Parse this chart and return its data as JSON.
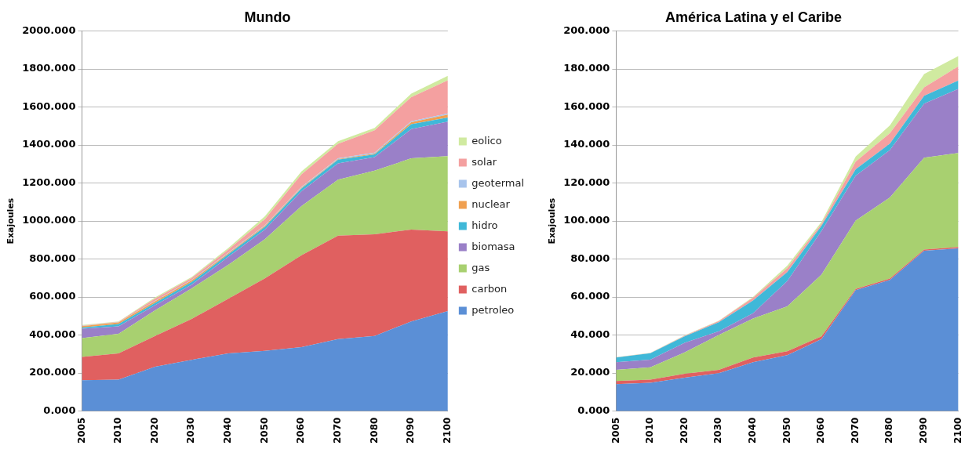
{
  "chart_data": [
    {
      "type": "area",
      "title": "Mundo",
      "ylabel": "Exajoules",
      "stacked": true,
      "grid": "y",
      "legend": "right",
      "categories": [
        "2005",
        "2010",
        "2020",
        "2030",
        "2040",
        "2050",
        "2060",
        "2070",
        "2080",
        "2090",
        "2100"
      ],
      "ylim": [
        0,
        2000
      ],
      "yticks": [
        {
          "value": 0,
          "label": "0.000"
        },
        {
          "value": 200,
          "label": "200.000"
        },
        {
          "value": 400,
          "label": "400.000"
        },
        {
          "value": 600,
          "label": "600.000"
        },
        {
          "value": 800,
          "label": "800.000"
        },
        {
          "value": 1000,
          "label": "1000.000"
        },
        {
          "value": 1200,
          "label": "1200.000"
        },
        {
          "value": 1400,
          "label": "1400.000"
        },
        {
          "value": 1600,
          "label": "1600.000"
        },
        {
          "value": 1800,
          "label": "1800.000"
        },
        {
          "value": 2000,
          "label": "2000.000"
        }
      ],
      "series": [
        {
          "name": "petroleo",
          "color": "#5b8fd6",
          "values": [
            162,
            165,
            233,
            270,
            304,
            317,
            336,
            379,
            395,
            472,
            526
          ]
        },
        {
          "name": "carbon",
          "color": "#e06060",
          "values": [
            123,
            139,
            162,
            215,
            287,
            381,
            484,
            544,
            535,
            483,
            420
          ]
        },
        {
          "name": "gas",
          "color": "#a8d070",
          "values": [
            99,
            103,
            135,
            161,
            179,
            207,
            259,
            295,
            335,
            375,
            396
          ]
        },
        {
          "name": "biomasa",
          "color": "#9a80c8",
          "values": [
            49,
            39,
            27,
            19,
            42,
            50,
            78,
            86,
            71,
            154,
            181
          ]
        },
        {
          "name": "hidro",
          "color": "#40b8d8",
          "values": [
            7,
            12,
            13,
            15,
            13,
            15,
            15,
            19,
            15,
            26,
            22
          ]
        },
        {
          "name": "nuclear",
          "color": "#f0a050",
          "values": [
            7,
            8,
            8,
            8,
            5,
            5,
            4,
            3,
            4,
            10,
            15
          ]
        },
        {
          "name": "geotermal",
          "color": "#a8c4ec",
          "values": [
            1,
            1,
            2,
            2,
            3,
            3,
            4,
            4,
            5,
            5,
            6
          ]
        },
        {
          "name": "solar",
          "color": "#f4a0a0",
          "values": [
            2,
            2,
            12,
            10,
            17,
            32,
            66,
            77,
            118,
            127,
            175
          ]
        },
        {
          "name": "eolico",
          "color": "#d0eaa0",
          "values": [
            3,
            3,
            6,
            6,
            8,
            15,
            15,
            13,
            12,
            19,
            23
          ]
        }
      ]
    },
    {
      "type": "area",
      "title": "América Latina y el Caribe",
      "ylabel": "Exajoules",
      "stacked": true,
      "grid": "y",
      "categories": [
        "2005",
        "2010",
        "2020",
        "2030",
        "2040",
        "2050",
        "2060",
        "2070",
        "2080",
        "2090",
        "2100"
      ],
      "ylim": [
        0,
        200
      ],
      "yticks": [
        {
          "value": 0,
          "label": "0.000"
        },
        {
          "value": 20,
          "label": "20.000"
        },
        {
          "value": 40,
          "label": "40.000"
        },
        {
          "value": 60,
          "label": "60.000"
        },
        {
          "value": 80,
          "label": "80.000"
        },
        {
          "value": 100,
          "label": "100.000"
        },
        {
          "value": 120,
          "label": "120.000"
        },
        {
          "value": 140,
          "label": "140.000"
        },
        {
          "value": 160,
          "label": "160.000"
        },
        {
          "value": 180,
          "label": "180.000"
        },
        {
          "value": 200,
          "label": "200.000"
        }
      ],
      "series": [
        {
          "color": "#5b8fd6",
          "values": [
            14.2,
            14.9,
            17.6,
            19.9,
            25.7,
            29.4,
            37.9,
            63.6,
            69.0,
            84.4,
            85.6
          ]
        },
        {
          "color": "#e06060",
          "values": [
            1.6,
            1.6,
            2.0,
            1.8,
            2.5,
            2.1,
            1.4,
            0.7,
            0.7,
            0.6,
            0.7
          ]
        },
        {
          "color": "#a8d070",
          "values": [
            5.9,
            6.5,
            11.3,
            18.3,
            20.5,
            23.6,
            32.5,
            35.9,
            42.7,
            48.3,
            49.5
          ]
        },
        {
          "color": "#9a80c8",
          "values": [
            4.0,
            4.1,
            5.0,
            2.0,
            2.8,
            13.3,
            23.0,
            23.7,
            25.0,
            28.5,
            33.7
          ]
        },
        {
          "color": "#40b8d8",
          "values": [
            2.5,
            3.4,
            3.4,
            4.7,
            6.7,
            4.7,
            2.7,
            3.4,
            3.4,
            4.1,
            4.5
          ]
        },
        {
          "color": "#f4a0a0",
          "values": [
            0.1,
            0.1,
            0.3,
            0.7,
            1.4,
            2.1,
            1.0,
            4.0,
            5.4,
            4.4,
            7.4
          ]
        },
        {
          "color": "#d0eaa0",
          "values": [
            0.1,
            0.1,
            0.2,
            0.2,
            0.4,
            1.3,
            1.0,
            2.7,
            4.1,
            7.1,
            5.4
          ]
        }
      ]
    }
  ]
}
